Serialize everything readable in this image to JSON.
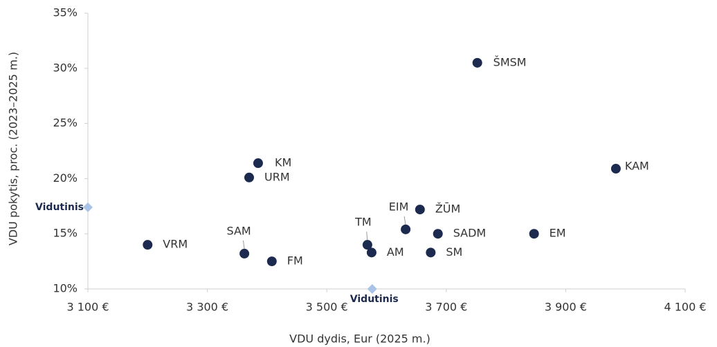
{
  "chart_data": {
    "type": "scatter",
    "x_label": "VDU dydis, Eur (2025 m.)",
    "y_label": "VDU pokytis, proc. (2023–2025 m.)",
    "color": "#1b2a4e",
    "points": [
      {
        "label": "ŠMSM",
        "x": 3752,
        "y": 30.5
      },
      {
        "label": "KAM",
        "x": 3984,
        "y": 20.9
      },
      {
        "label": "KM",
        "x": 3385,
        "y": 21.4
      },
      {
        "label": "URM",
        "x": 3370,
        "y": 20.1
      },
      {
        "label": "ŽŪM",
        "x": 3656,
        "y": 17.2
      },
      {
        "label": "EIM",
        "x": 3632,
        "y": 15.4
      },
      {
        "label": "SADM",
        "x": 3686,
        "y": 15.0
      },
      {
        "label": "EM",
        "x": 3847,
        "y": 15.0
      },
      {
        "label": "VRM",
        "x": 3200,
        "y": 14.0
      },
      {
        "label": "SAM",
        "x": 3362,
        "y": 13.2
      },
      {
        "label": "FM",
        "x": 3408,
        "y": 12.5
      },
      {
        "label": "TM",
        "x": 3568,
        "y": 14.0
      },
      {
        "label": "AM",
        "x": 3575,
        "y": 13.3
      },
      {
        "label": "SM",
        "x": 3674,
        "y": 13.3
      }
    ],
    "average": {
      "label": "Vidutinis",
      "x": 3576,
      "y": 17.4,
      "color": "#a8c3e6"
    },
    "xlim": [
      3100,
      4100
    ],
    "xticks": [
      {
        "value": 3100,
        "label": "3 100 €"
      },
      {
        "value": 3300,
        "label": "3 300 €"
      },
      {
        "value": 3500,
        "label": "3 500 €"
      },
      {
        "value": 3700,
        "label": "3 700 €"
      },
      {
        "value": 3900,
        "label": "3 900 €"
      },
      {
        "value": 4100,
        "label": "4 100 €"
      }
    ],
    "ylim": [
      10,
      35
    ],
    "yticks": [
      {
        "value": 10,
        "label": "10%"
      },
      {
        "value": 15,
        "label": "15%"
      },
      {
        "value": 20,
        "label": "20%"
      },
      {
        "value": 25,
        "label": "25%"
      },
      {
        "value": 30,
        "label": "30%"
      },
      {
        "value": 35,
        "label": "35%"
      }
    ]
  }
}
